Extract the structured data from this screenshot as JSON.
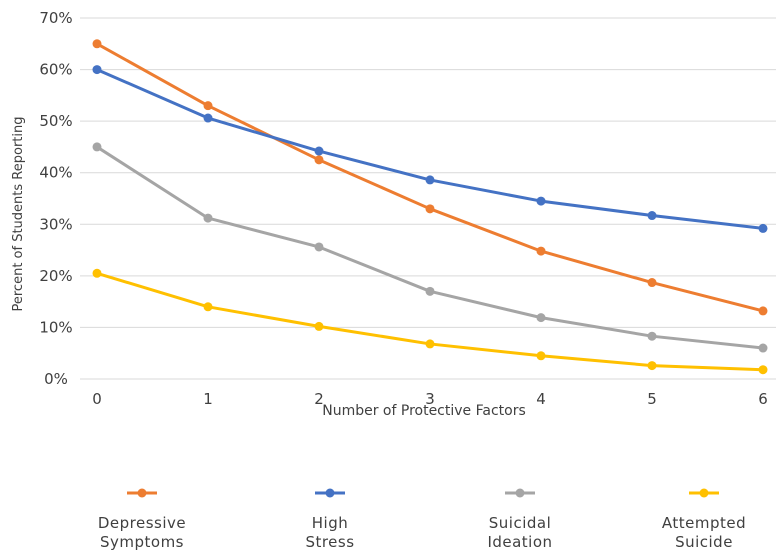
{
  "chart_data": {
    "type": "line",
    "xlabel": "Number of Protective Factors",
    "ylabel": "Percent of Students Reporting",
    "x": [
      0,
      1,
      2,
      3,
      4,
      5,
      6
    ],
    "x_tick_labels": [
      "0",
      "1",
      "2",
      "3",
      "4",
      "5",
      "6"
    ],
    "ylim": [
      0,
      70
    ],
    "y_ticks": [
      0,
      10,
      20,
      30,
      40,
      50,
      60,
      70
    ],
    "y_tick_labels": [
      "0%",
      "10%",
      "20%",
      "30%",
      "40%",
      "50%",
      "60%",
      "70%"
    ],
    "grid": "horizontal",
    "legend_position": "bottom",
    "series": [
      {
        "name": "Depressive Symptoms",
        "legend_lines": [
          "Depressive",
          "Symptoms"
        ],
        "color": "#ED7D31",
        "values": [
          65,
          53,
          42.5,
          33,
          24.8,
          18.7,
          13.2
        ]
      },
      {
        "name": "High Stress",
        "legend_lines": [
          "High",
          "Stress"
        ],
        "color": "#4472C4",
        "values": [
          60,
          50.6,
          44.2,
          38.6,
          34.5,
          31.7,
          29.2
        ]
      },
      {
        "name": "Suicidal Ideation",
        "legend_lines": [
          "Suicidal",
          "Ideation"
        ],
        "color": "#A5A5A5",
        "values": [
          45,
          31.2,
          25.6,
          17,
          11.9,
          8.3,
          6
        ]
      },
      {
        "name": "Attempted Suicide",
        "legend_lines": [
          "Attempted",
          "Suicide"
        ],
        "color": "#FFC000",
        "values": [
          20.5,
          14,
          10.2,
          6.8,
          4.5,
          2.6,
          1.8
        ]
      }
    ]
  }
}
